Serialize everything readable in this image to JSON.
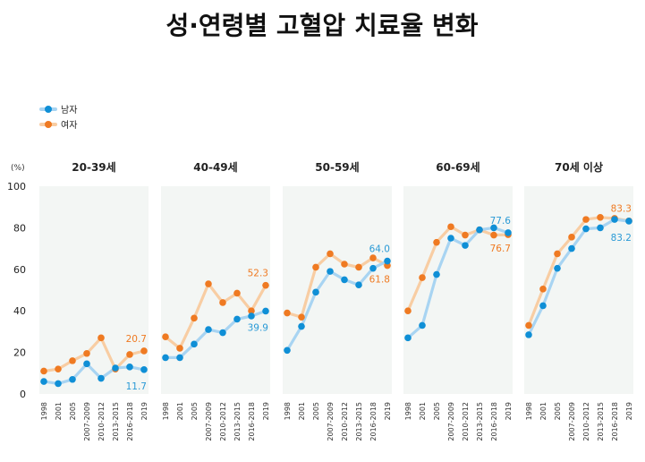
{
  "title": "성·연령별 고혈압 치료율 변화",
  "colors": {
    "male_point": "#0f8fd6",
    "male_line": "#a8d4f2",
    "female_point": "#ef7a22",
    "female_line": "#f8cda3",
    "panel_bg": "#f3f6f4",
    "male_label": "#2a9ad6",
    "female_label": "#ef7a22"
  },
  "chart_data": {
    "type": "line",
    "unit": "(%)",
    "ylim": [
      0,
      100
    ],
    "yticks": [
      0,
      20,
      40,
      60,
      80,
      100
    ],
    "x": [
      "1998",
      "2001",
      "2005",
      "2007-2009",
      "2010-2012",
      "2013-2015",
      "2016-2018",
      "2019"
    ],
    "legend": [
      "남자",
      "여자"
    ],
    "panels": [
      {
        "title": "20-39세",
        "series": [
          {
            "name": "남자",
            "values": [
              6,
              5,
              7,
              14.5,
              7.5,
              12.5,
              13,
              11.7
            ]
          },
          {
            "name": "여자",
            "values": [
              11,
              12,
              16,
              19.5,
              27,
              12,
              19,
              20.7
            ]
          }
        ],
        "labels": {
          "male": "11.7",
          "female": "20.7"
        }
      },
      {
        "title": "40-49세",
        "series": [
          {
            "name": "남자",
            "values": [
              17.5,
              17.5,
              24,
              31,
              29.5,
              36,
              37.5,
              39.9
            ]
          },
          {
            "name": "여자",
            "values": [
              27.5,
              22,
              36.5,
              53,
              44,
              48.5,
              40,
              52.3
            ]
          }
        ],
        "labels": {
          "male": "39.9",
          "female": "52.3"
        }
      },
      {
        "title": "50-59세",
        "series": [
          {
            "name": "남자",
            "values": [
              21,
              32.5,
              49,
              59,
              55,
              52.5,
              60.5,
              64.0
            ]
          },
          {
            "name": "여자",
            "values": [
              39,
              37,
              61,
              67.5,
              62.5,
              61,
              65.5,
              61.8
            ]
          }
        ],
        "labels": {
          "male": "64.0",
          "female": "61.8"
        }
      },
      {
        "title": "60-69세",
        "series": [
          {
            "name": "남자",
            "values": [
              27,
              33,
              57.5,
              75,
              71.5,
              79,
              80,
              77.6
            ]
          },
          {
            "name": "여자",
            "values": [
              40,
              56,
              73,
              80.5,
              76.5,
              79,
              76.5,
              76.7
            ]
          }
        ],
        "labels": {
          "male": "77.6",
          "female": "76.7"
        }
      },
      {
        "title": "70세 이상",
        "series": [
          {
            "name": "남자",
            "values": [
              28.5,
              42.5,
              60.5,
              70,
              79.5,
              80,
              84,
              83.2
            ]
          },
          {
            "name": "여자",
            "values": [
              33,
              50.5,
              67.5,
              75.5,
              84,
              85,
              84.5,
              83.3
            ]
          }
        ],
        "labels": {
          "male": "83.2",
          "female": "83.3"
        }
      }
    ]
  }
}
